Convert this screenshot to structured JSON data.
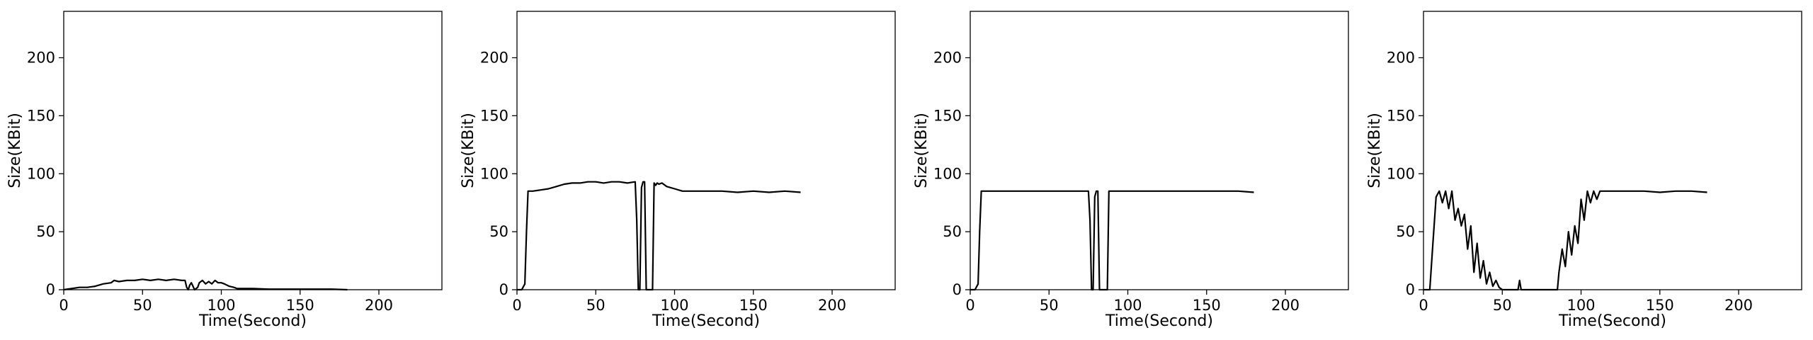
{
  "chart_data": [
    {
      "type": "line",
      "xlabel": "Time(Second)",
      "ylabel": "Size(KBit)",
      "xlim": [
        0,
        240
      ],
      "ylim": [
        0,
        240
      ],
      "xticks": [
        0,
        50,
        100,
        150,
        200
      ],
      "yticks": [
        0,
        50,
        100,
        150,
        200
      ],
      "grid": false,
      "series": [
        {
          "color": "#000000",
          "x": [
            0,
            5,
            10,
            15,
            20,
            25,
            30,
            32,
            35,
            40,
            45,
            50,
            55,
            60,
            65,
            70,
            75,
            77,
            78,
            79,
            80,
            81,
            82,
            83,
            84,
            85,
            86,
            88,
            90,
            92,
            94,
            96,
            98,
            100,
            102,
            105,
            108,
            110,
            115,
            120,
            130,
            140,
            150,
            160,
            170,
            180
          ],
          "y": [
            0,
            1,
            2,
            2,
            3,
            5,
            6,
            8,
            7,
            8,
            8,
            9,
            8,
            9,
            8,
            9,
            8,
            8,
            2,
            0,
            4,
            6,
            3,
            0,
            1,
            2,
            6,
            8,
            5,
            7,
            5,
            8,
            6,
            6,
            5,
            3,
            2,
            1,
            1,
            1,
            0.5,
            0.5,
            0.5,
            0.5,
            0.5,
            0
          ]
        }
      ]
    },
    {
      "type": "line",
      "xlabel": "Time(Second)",
      "ylabel": "Size(KBit)",
      "xlim": [
        0,
        240
      ],
      "ylim": [
        0,
        240
      ],
      "xticks": [
        0,
        50,
        100,
        150,
        200
      ],
      "yticks": [
        0,
        50,
        100,
        150,
        200
      ],
      "grid": false,
      "series": [
        {
          "color": "#000000",
          "x": [
            0,
            3,
            5,
            6,
            7,
            8,
            10,
            15,
            20,
            25,
            30,
            35,
            40,
            45,
            50,
            55,
            60,
            65,
            70,
            75,
            76,
            77,
            78,
            79,
            80,
            81,
            82,
            83,
            84,
            85,
            86,
            87,
            88,
            89,
            90,
            92,
            95,
            100,
            105,
            110,
            120,
            130,
            140,
            150,
            160,
            170,
            180
          ],
          "y": [
            0,
            0,
            5,
            50,
            85,
            85,
            85,
            86,
            87,
            89,
            91,
            92,
            92,
            93,
            93,
            92,
            93,
            93,
            92,
            93,
            60,
            0,
            0,
            88,
            93,
            93,
            0,
            0,
            0,
            0,
            0,
            92,
            90,
            92,
            91,
            92,
            89,
            87,
            85,
            85,
            85,
            85,
            84,
            85,
            84,
            85,
            84
          ]
        }
      ]
    },
    {
      "type": "line",
      "xlabel": "Time(Second)",
      "ylabel": "Size(KBit)",
      "xlim": [
        0,
        240
      ],
      "ylim": [
        0,
        240
      ],
      "xticks": [
        0,
        50,
        100,
        150,
        200
      ],
      "yticks": [
        0,
        50,
        100,
        150,
        200
      ],
      "grid": false,
      "series": [
        {
          "color": "#000000",
          "x": [
            0,
            3,
            5,
            6,
            7,
            8,
            10,
            20,
            30,
            40,
            50,
            60,
            70,
            75,
            76,
            77,
            78,
            79,
            80,
            81,
            82,
            83,
            84,
            85,
            86,
            87,
            88,
            89,
            90,
            100,
            110,
            120,
            130,
            140,
            150,
            160,
            170,
            180
          ],
          "y": [
            0,
            0,
            5,
            50,
            85,
            85,
            85,
            85,
            85,
            85,
            85,
            85,
            85,
            85,
            60,
            0,
            0,
            80,
            85,
            85,
            0,
            0,
            0,
            0,
            0,
            0,
            85,
            85,
            85,
            85,
            85,
            85,
            85,
            85,
            85,
            85,
            85,
            84
          ]
        }
      ]
    },
    {
      "type": "line",
      "xlabel": "Time(Second)",
      "ylabel": "Size(KBit)",
      "xlim": [
        0,
        240
      ],
      "ylim": [
        0,
        240
      ],
      "xticks": [
        0,
        50,
        100,
        150,
        200
      ],
      "yticks": [
        0,
        50,
        100,
        150,
        200
      ],
      "grid": false,
      "series": [
        {
          "color": "#000000",
          "x": [
            0,
            4,
            6,
            8,
            10,
            12,
            14,
            16,
            18,
            20,
            22,
            24,
            26,
            28,
            30,
            32,
            34,
            36,
            38,
            40,
            42,
            44,
            46,
            48,
            50,
            55,
            60,
            61,
            62,
            65,
            70,
            75,
            80,
            85,
            86,
            88,
            90,
            92,
            94,
            96,
            98,
            100,
            102,
            104,
            106,
            108,
            110,
            112,
            115,
            120,
            130,
            140,
            150,
            160,
            170,
            180
          ],
          "y": [
            0,
            0,
            40,
            80,
            85,
            75,
            85,
            70,
            85,
            60,
            70,
            55,
            65,
            35,
            55,
            15,
            40,
            10,
            25,
            5,
            15,
            3,
            8,
            2,
            0,
            0,
            0,
            8,
            0,
            0,
            0,
            0,
            0,
            0,
            15,
            35,
            20,
            50,
            30,
            55,
            40,
            78,
            60,
            85,
            75,
            85,
            78,
            85,
            85,
            85,
            85,
            85,
            84,
            85,
            85,
            84
          ]
        }
      ]
    }
  ]
}
